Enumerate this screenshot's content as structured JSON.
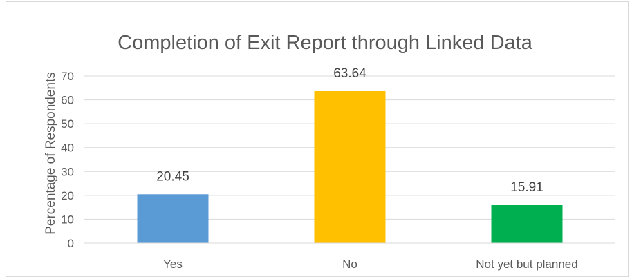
{
  "chart_data": {
    "type": "bar",
    "title": "Completion of Exit Report through Linked Data",
    "xlabel": "",
    "ylabel": "Percentage of Respondents",
    "categories": [
      "Yes",
      "No",
      "Not yet but planned"
    ],
    "values": [
      20.45,
      63.64,
      15.91
    ],
    "data_labels": [
      "20.45",
      "63.64",
      "15.91"
    ],
    "bar_colors": [
      "#5B9BD5",
      "#FFC000",
      "#00B050"
    ],
    "ylim": [
      0,
      70
    ],
    "yticks": [
      "0",
      "10",
      "20",
      "30",
      "40",
      "50",
      "60",
      "70"
    ],
    "grid": true,
    "legend": "none"
  }
}
